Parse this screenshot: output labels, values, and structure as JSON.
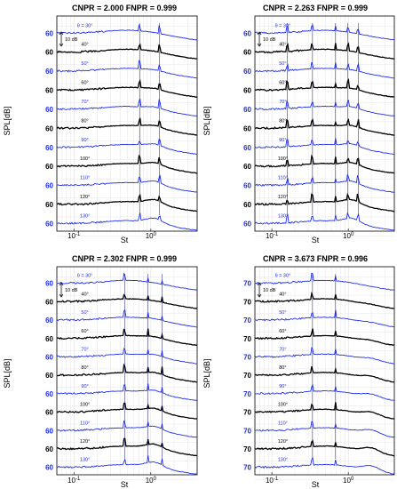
{
  "figure": {
    "axis_xlabel": "St",
    "axis_ylabel": "SPL[dB]",
    "scale_bar_label": "10 dB"
  },
  "colors": {
    "blue": "#1f2ee8",
    "black": "#000000",
    "grid": "#e6e6e6",
    "thin_black": "#555555"
  },
  "chart_data": [
    {
      "type": "line",
      "title": "CNPR = 2.000   FNPR = 0.999",
      "xlabel": "St",
      "ylabel": "SPL[dB]",
      "x_scale": "log",
      "xlim": [
        0.06,
        4.0
      ],
      "x_ticks": [
        "10^-1",
        "10^0"
      ],
      "grid": true,
      "y_tick_value": "60",
      "angle_labels": [
        "θ = 30°",
        "40°",
        "50°",
        "60°",
        "70°",
        "80°",
        "90°",
        "100°",
        "110°",
        "120°",
        "130°"
      ],
      "series_colors": [
        "blue",
        "black",
        "blue",
        "black",
        "blue",
        "black",
        "blue",
        "black",
        "blue",
        "black",
        "blue"
      ],
      "tones": [
        0.72,
        1.3
      ]
    },
    {
      "type": "line",
      "title": "CNPR = 2.263   FNPR = 0.999",
      "xlabel": "St",
      "ylabel": "SPL[dB]",
      "x_scale": "log",
      "xlim": [
        0.06,
        4.0
      ],
      "x_ticks": [
        "10^-1",
        "10^0"
      ],
      "grid": true,
      "y_tick_value": "60",
      "angle_labels": [
        "θ = 30°",
        "40°",
        "50°",
        "60°",
        "70°",
        "80°",
        "90°",
        "100°",
        "110°",
        "120°",
        "130°"
      ],
      "series_colors": [
        "blue",
        "black",
        "blue",
        "black",
        "blue",
        "black",
        "blue",
        "black",
        "blue",
        "black",
        "blue"
      ],
      "tones": [
        0.16,
        0.34,
        0.68,
        0.98,
        1.35
      ]
    },
    {
      "type": "line",
      "title": "CNPR = 2.302   FNPR = 0.999",
      "xlabel": "St",
      "ylabel": "SPL[dB]",
      "x_scale": "log",
      "xlim": [
        0.06,
        4.0
      ],
      "x_ticks": [
        "10^-1",
        "10^0"
      ],
      "grid": true,
      "y_tick_value": "60",
      "angle_labels": [
        "θ = 30°",
        "40°",
        "50°",
        "60°",
        "70°",
        "80°",
        "90°",
        "100°",
        "110°",
        "120°",
        "130°"
      ],
      "series_colors": [
        "blue",
        "black",
        "blue",
        "black",
        "blue",
        "black",
        "blue",
        "black",
        "blue",
        "black",
        "blue"
      ],
      "tones": [
        0.46,
        0.92,
        1.4
      ]
    },
    {
      "type": "line",
      "title": "CNPR = 3.673   FNPR = 0.996",
      "xlabel": "St",
      "ylabel": "SPL[dB]",
      "x_scale": "log",
      "xlim": [
        0.06,
        4.0
      ],
      "x_ticks": [
        "10^-1",
        "10^0"
      ],
      "grid": true,
      "y_tick_value": "70",
      "angle_labels": [
        "θ = 30°",
        "40°",
        "50°",
        "60°",
        "70°",
        "80°",
        "90°",
        "100°",
        "110°",
        "120°",
        "130°"
      ],
      "series_colors": [
        "blue",
        "black",
        "blue",
        "black",
        "blue",
        "black",
        "blue",
        "black",
        "blue",
        "black",
        "blue"
      ],
      "tones": [
        0.34,
        0.68
      ]
    }
  ]
}
